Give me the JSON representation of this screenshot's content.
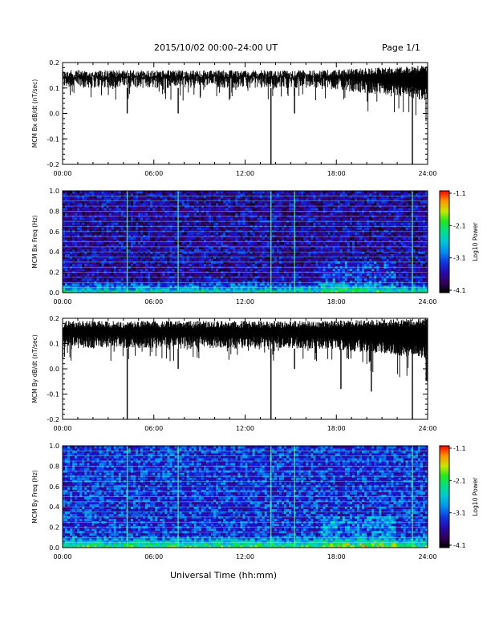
{
  "header": {
    "title": "2015/10/02  00:00–24:00 UT",
    "page": "Page 1/1"
  },
  "footer": {
    "xlabel": "Universal Time (hh:mm)"
  },
  "chart_data": [
    {
      "type": "line",
      "ylabel": "MCM Bx dB/dt (nT/sec)",
      "xlim": [
        0,
        24
      ],
      "ylim": [
        -0.2,
        0.2
      ],
      "xticks": [
        "00:00",
        "06:00",
        "12:00",
        "18:00",
        "24:00"
      ],
      "yticks": [
        "-0.2",
        "-0.1",
        "0.0",
        "0.1",
        "0.2"
      ],
      "band": {
        "base_high": 0.17,
        "base_low": 0.1,
        "late_high": 0.19,
        "late_low": 0.05
      },
      "spikes": [
        {
          "x": 4.25,
          "y": 0.0
        },
        {
          "x": 7.6,
          "y": 0.0
        },
        {
          "x": 13.7,
          "y": -0.2
        },
        {
          "x": 15.25,
          "y": 0.0
        },
        {
          "x": 23.0,
          "y": -0.2
        }
      ]
    },
    {
      "type": "heatmap",
      "ylabel": "MCM Bx Freq (Hz)",
      "xlim": [
        0,
        24
      ],
      "ylim": [
        0,
        1.0
      ],
      "xticks": [
        "00:00",
        "06:00",
        "12:00",
        "18:00",
        "24:00"
      ],
      "yticks": [
        "0.0",
        "0.2",
        "0.4",
        "0.6",
        "0.8",
        "1.0"
      ],
      "colorbar": {
        "label": "Log10 Power",
        "ticks": [
          "-1.1",
          "-2.1",
          "-3.1",
          "-4.1"
        ],
        "range": [
          -4.1,
          -1.1
        ]
      },
      "harmonic_freq_hz": [
        0.05,
        0.1,
        0.15,
        0.2,
        0.25,
        0.3,
        0.35,
        0.4,
        0.45,
        0.5,
        0.55,
        0.6,
        0.65,
        0.7,
        0.75,
        0.8,
        0.85,
        0.9,
        0.95
      ],
      "vertical_events_hr": [
        4.25,
        7.6,
        13.7,
        15.25,
        23.0
      ],
      "base_level": -3.55
    },
    {
      "type": "line",
      "ylabel": "MCM By dB/dt (nT/sec)",
      "xlim": [
        0,
        24
      ],
      "ylim": [
        -0.2,
        0.2
      ],
      "xticks": [
        "00:00",
        "06:00",
        "12:00",
        "18:00",
        "24:00"
      ],
      "yticks": [
        "-0.2",
        "-0.1",
        "0.0",
        "0.1",
        "0.2"
      ],
      "band": {
        "base_high": 0.19,
        "base_low": 0.08,
        "late_high": 0.2,
        "late_low": 0.04
      },
      "spikes": [
        {
          "x": 4.25,
          "y": -0.2
        },
        {
          "x": 7.6,
          "y": 0.0
        },
        {
          "x": 13.7,
          "y": -0.2
        },
        {
          "x": 15.25,
          "y": 0.0
        },
        {
          "x": 18.3,
          "y": -0.08
        },
        {
          "x": 20.3,
          "y": -0.09
        },
        {
          "x": 23.0,
          "y": -0.2
        }
      ]
    },
    {
      "type": "heatmap",
      "ylabel": "MCM By Freq (Hz)",
      "xlim": [
        0,
        24
      ],
      "ylim": [
        0,
        1.0
      ],
      "xticks": [
        "00:00",
        "06:00",
        "12:00",
        "18:00",
        "24:00"
      ],
      "yticks": [
        "0.0",
        "0.2",
        "0.4",
        "0.6",
        "0.8",
        "1.0"
      ],
      "colorbar": {
        "label": "Log10 Power",
        "ticks": [
          "-1.1",
          "-2.1",
          "-3.1",
          "-4.1"
        ],
        "range": [
          -4.1,
          -1.1
        ]
      },
      "harmonic_freq_hz": [
        0.05,
        0.1,
        0.15,
        0.2,
        0.25,
        0.3,
        0.35,
        0.4,
        0.45,
        0.5,
        0.55,
        0.6,
        0.65,
        0.7,
        0.75,
        0.8,
        0.85,
        0.9,
        0.95
      ],
      "vertical_events_hr": [
        4.25,
        7.6,
        13.7,
        15.25,
        23.0
      ],
      "base_level": -3.25
    }
  ]
}
